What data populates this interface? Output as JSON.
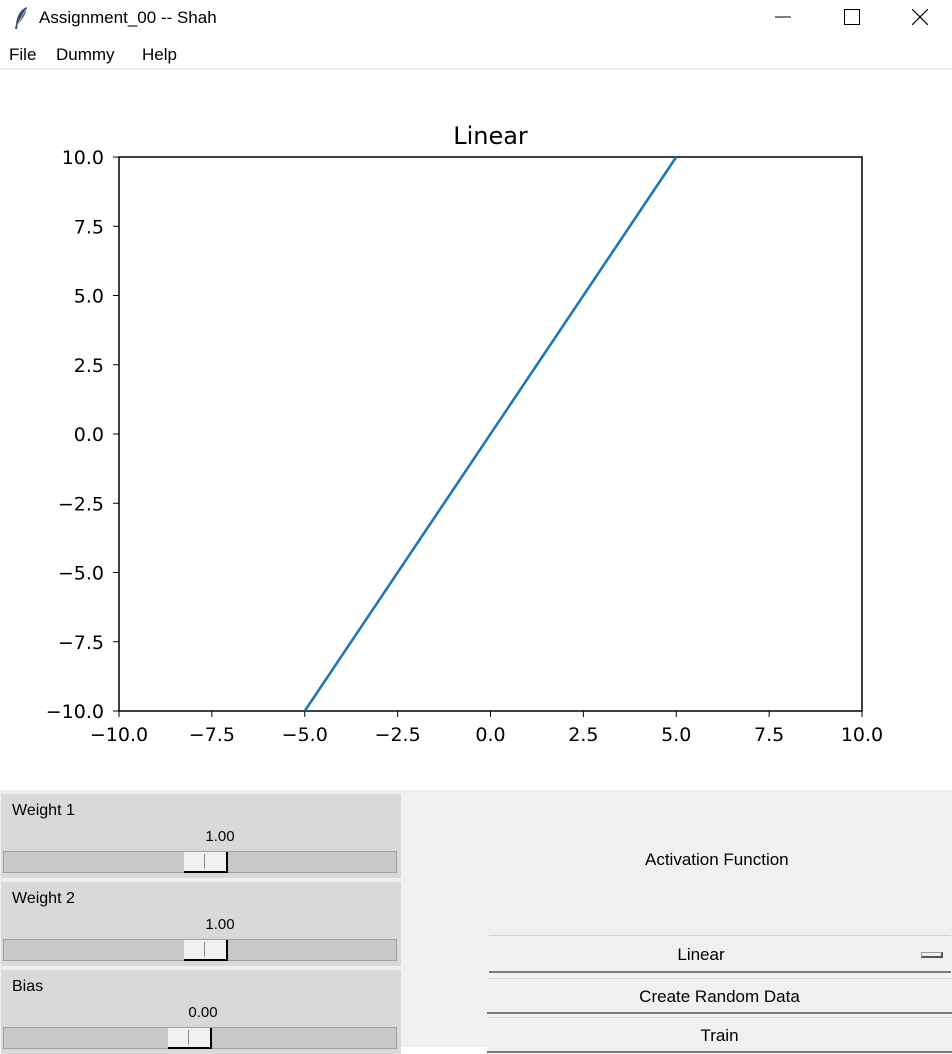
{
  "window": {
    "title": "Assignment_00 -- Shah",
    "icons": {
      "app": "feather-icon",
      "minimize": "minimize-icon",
      "maximize": "maximize-icon",
      "close": "close-icon"
    }
  },
  "menu": {
    "items": [
      "File",
      "Dummy",
      "Help"
    ]
  },
  "chart_data": {
    "type": "line",
    "title": "Linear",
    "xlabel": "",
    "ylabel": "",
    "xlim": [
      -10,
      10
    ],
    "ylim": [
      -10,
      10
    ],
    "xticks": [
      "−10.0",
      "−7.5",
      "−5.0",
      "−2.5",
      "0.0",
      "2.5",
      "5.0",
      "7.5",
      "10.0"
    ],
    "yticks": [
      "10.0",
      "7.5",
      "5.0",
      "2.5",
      "0.0",
      "−2.5",
      "−5.0",
      "−7.5",
      "−10.0"
    ],
    "grid": false,
    "color": "#1f77b4",
    "series": [
      {
        "x": [
          -5,
          5
        ],
        "y": [
          -10,
          10
        ]
      }
    ]
  },
  "controls": {
    "sliders": [
      {
        "label": "Weight 1",
        "value": "1.00",
        "position": 0.5
      },
      {
        "label": "Weight 2",
        "value": "1.00",
        "position": 0.5
      },
      {
        "label": "Bias",
        "value": "0.00",
        "position": 0.5
      }
    ],
    "activation_label": "Activation Function",
    "activation_selected": "Linear",
    "buttons": {
      "create": "Create Random Data",
      "train": "Train"
    }
  }
}
